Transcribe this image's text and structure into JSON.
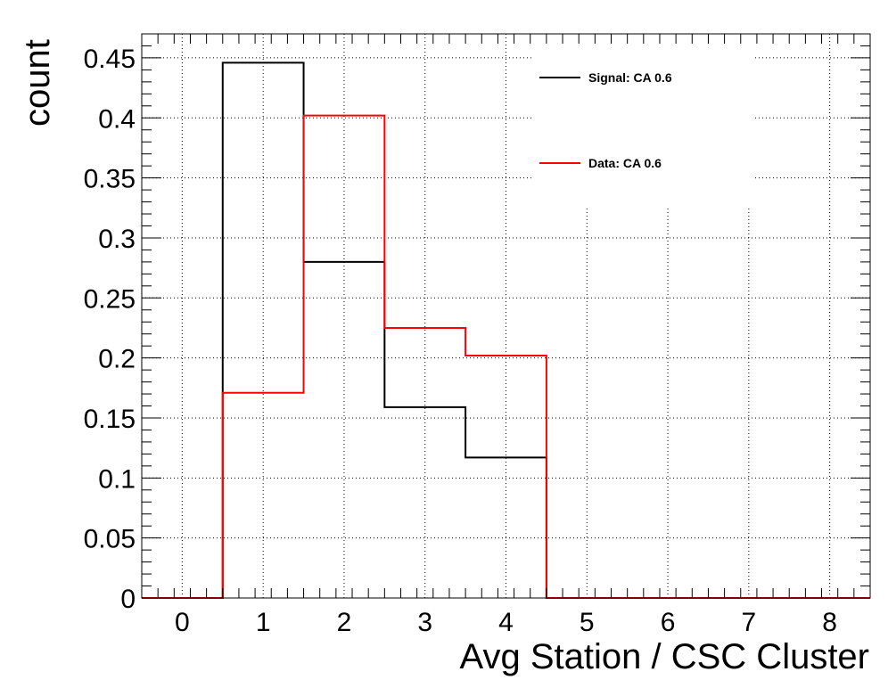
{
  "chart_data": {
    "type": "histogram",
    "xlabel": "Avg Station / CSC Cluster",
    "ylabel": "count",
    "xlim": [
      -0.5,
      8.5
    ],
    "ylim": [
      0,
      0.47
    ],
    "bin_width": 1,
    "bin_centers": [
      0,
      1,
      2,
      3,
      4,
      5,
      6,
      7,
      8
    ],
    "x_ticks": [
      0,
      1,
      2,
      3,
      4,
      5,
      6,
      7,
      8
    ],
    "y_ticks": [
      0,
      0.05,
      0.1,
      0.15,
      0.2,
      0.25,
      0.3,
      0.35,
      0.4,
      0.45
    ],
    "y_tick_labels": [
      "0",
      "0.05",
      "0.1",
      "0.15",
      "0.2",
      "0.25",
      "0.3",
      "0.35",
      "0.4",
      "0.45"
    ],
    "grid": true,
    "legend_position": "top-right",
    "series": [
      {
        "name": "Signal: CA 0.6",
        "color": "#000000",
        "values": [
          0,
          0.446,
          0.28,
          0.159,
          0.117,
          0,
          0,
          0,
          0
        ]
      },
      {
        "name": "Data: CA 0.6",
        "color": "#ff0000",
        "values": [
          0,
          0.171,
          0.402,
          0.225,
          0.202,
          0,
          0,
          0,
          0
        ]
      }
    ]
  }
}
